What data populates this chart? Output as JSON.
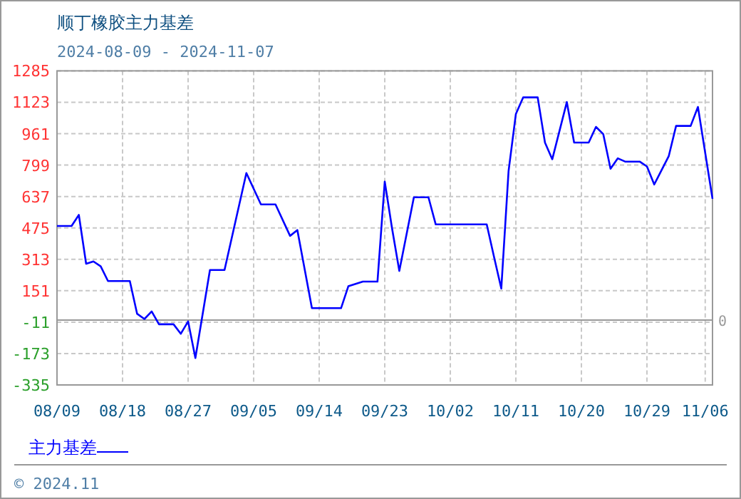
{
  "chart_data": {
    "type": "line",
    "title": "顺丁橡胶主力基差",
    "subtitle": "2024-08-09 - 2024-11-07",
    "annotations": [
      "© 2024.11"
    ],
    "x": [
      "2024-08-09",
      "2024-08-11",
      "2024-08-12",
      "2024-08-13",
      "2024-08-14",
      "2024-08-15",
      "2024-08-16",
      "2024-08-19",
      "2024-08-20",
      "2024-08-21",
      "2024-08-22",
      "2024-08-23",
      "2024-08-25",
      "2024-08-26",
      "2024-08-27",
      "2024-08-28",
      "2024-08-30",
      "2024-09-01",
      "2024-09-04",
      "2024-09-06",
      "2024-09-08",
      "2024-09-10",
      "2024-09-11",
      "2024-09-13",
      "2024-09-17",
      "2024-09-18",
      "2024-09-20",
      "2024-09-22",
      "2024-09-23",
      "2024-09-24",
      "2024-09-25",
      "2024-09-27",
      "2024-09-29",
      "2024-09-30",
      "2024-10-07",
      "2024-10-08",
      "2024-10-09",
      "2024-10-10",
      "2024-10-11",
      "2024-10-12",
      "2024-10-14",
      "2024-10-15",
      "2024-10-16",
      "2024-10-18",
      "2024-10-19",
      "2024-10-21",
      "2024-10-22",
      "2024-10-23",
      "2024-10-24",
      "2024-10-25",
      "2024-10-26",
      "2024-10-28",
      "2024-10-29",
      "2024-10-30",
      "2024-11-01",
      "2024-11-02",
      "2024-11-04",
      "2024-11-05",
      "2024-11-07"
    ],
    "series": [
      {
        "name": "主力基差",
        "color": "#0000ff",
        "values": [
          485,
          485,
          542,
          290,
          302,
          277,
          201,
          201,
          32,
          5,
          44,
          -22,
          -22,
          -71,
          -7,
          -196,
          258,
          258,
          758,
          596,
          596,
          434,
          464,
          61,
          61,
          174,
          198,
          198,
          714,
          473,
          253,
          633,
          633,
          493,
          493,
          326,
          162,
          768,
          1062,
          1148,
          1148,
          915,
          829,
          1124,
          915,
          915,
          996,
          959,
          780,
          834,
          817,
          817,
          792,
          699,
          846,
          1001,
          1001,
          1099,
          625
        ]
      }
    ],
    "xlim": [
      "2024-08-09",
      "2024-11-07"
    ],
    "xticks": [
      {
        "value": "2024-08-09",
        "label": "08/09"
      },
      {
        "value": "2024-08-18",
        "label": "08/18"
      },
      {
        "value": "2024-08-27",
        "label": "08/27"
      },
      {
        "value": "2024-09-05",
        "label": "09/05"
      },
      {
        "value": "2024-09-14",
        "label": "09/14"
      },
      {
        "value": "2024-09-23",
        "label": "09/23"
      },
      {
        "value": "2024-10-02",
        "label": "10/02"
      },
      {
        "value": "2024-10-11",
        "label": "10/11"
      },
      {
        "value": "2024-10-20",
        "label": "10/20"
      },
      {
        "value": "2024-10-29",
        "label": "10/29"
      },
      {
        "value": "2024-11-06",
        "label": "11/06"
      }
    ],
    "ylim": [
      -335,
      1285
    ],
    "yticks": [
      -335,
      -173,
      -11,
      151,
      313,
      475,
      637,
      799,
      961,
      1123,
      1285
    ],
    "ref_lines": [
      {
        "axis": "y",
        "value": 0,
        "label": "0",
        "color": "#999999"
      }
    ],
    "grid": true,
    "legend": "bottom left",
    "marker": "none",
    "line_style": "solid"
  }
}
